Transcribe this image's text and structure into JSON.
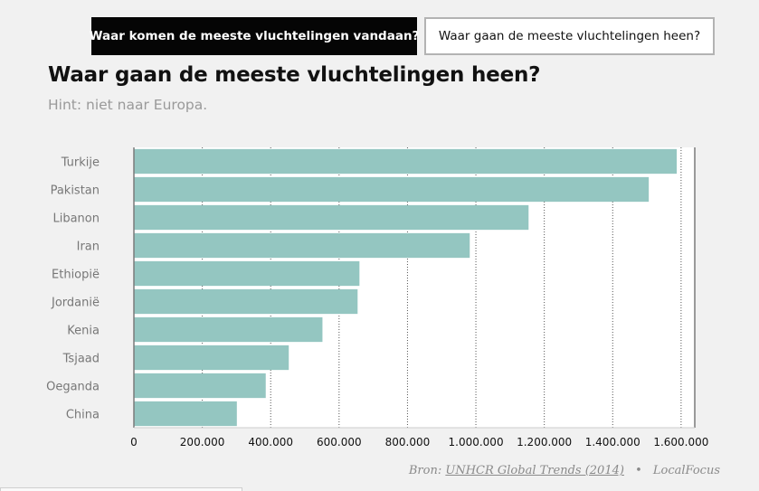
{
  "tabs": [
    {
      "label": "Waar komen de meeste vluchtelingen vandaan?",
      "active": true
    },
    {
      "label": "Waar gaan de meeste vluchtelingen heen?",
      "active": false
    }
  ],
  "heading": {
    "title": "Waar gaan de meeste vluchtelingen heen?",
    "subtitle": "Hint: niet naar Europa."
  },
  "source": {
    "prefix": "Bron:",
    "link_label": "UNHCR Global Trends (2014)",
    "separator": "•",
    "credit": "LocalFocus"
  },
  "colors": {
    "bar": "#94c6c1",
    "active_tab": "#050505",
    "axis": "#7a7a7a"
  },
  "chart_data": {
    "type": "bar",
    "orientation": "horizontal",
    "categories": [
      "Turkije",
      "Pakistan",
      "Libanon",
      "Iran",
      "Ethiopië",
      "Jordanië",
      "Kenia",
      "Tsjaad",
      "Oeganda",
      "China"
    ],
    "values": [
      1587374,
      1505525,
      1154040,
      982027,
      659524,
      654141,
      551352,
      452897,
      385513,
      301052
    ],
    "xlim": [
      0,
      1640000
    ],
    "x_ticks": [
      0,
      200000,
      400000,
      600000,
      800000,
      1000000,
      1200000,
      1400000,
      1600000
    ],
    "x_tick_labels": [
      "0",
      "200.000",
      "400.000",
      "600.000",
      "800.000",
      "1.000.000",
      "1.200.000",
      "1.400.000",
      "1.600.000"
    ],
    "grid": "vertical dotted"
  }
}
